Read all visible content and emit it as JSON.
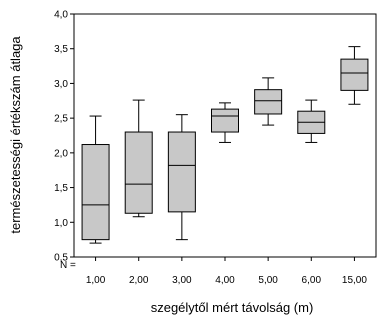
{
  "chart_data": {
    "type": "boxplot",
    "title": "",
    "xlabel": "szegélytől mért távolság (m)",
    "ylabel": "természetességi értékszám átlaga",
    "n_label": "N =",
    "categories": [
      "1,00",
      "2,00",
      "3,00",
      "4,00",
      "5,00",
      "6,00",
      "15,00"
    ],
    "yticks": [
      "0,5",
      "1,0",
      "1,5",
      "2,0",
      "2,5",
      "3,0",
      "3,5",
      "4,0"
    ],
    "ylim": [
      0.5,
      4.0
    ],
    "grid": false,
    "box_color": "#c8c8c8",
    "boxes": [
      {
        "min": 0.7,
        "q1": 0.75,
        "median": 1.25,
        "q3": 2.12,
        "max": 2.53
      },
      {
        "min": 1.08,
        "q1": 1.13,
        "median": 1.55,
        "q3": 2.3,
        "max": 2.76
      },
      {
        "min": 0.75,
        "q1": 1.15,
        "median": 1.82,
        "q3": 2.3,
        "max": 2.55
      },
      {
        "min": 2.15,
        "q1": 2.3,
        "median": 2.53,
        "q3": 2.63,
        "max": 2.72
      },
      {
        "min": 2.4,
        "q1": 2.56,
        "median": 2.75,
        "q3": 2.91,
        "max": 3.08
      },
      {
        "min": 2.15,
        "q1": 2.28,
        "median": 2.44,
        "q3": 2.6,
        "max": 2.76
      },
      {
        "min": 2.7,
        "q1": 2.9,
        "median": 3.15,
        "q3": 3.35,
        "max": 3.53
      }
    ]
  }
}
